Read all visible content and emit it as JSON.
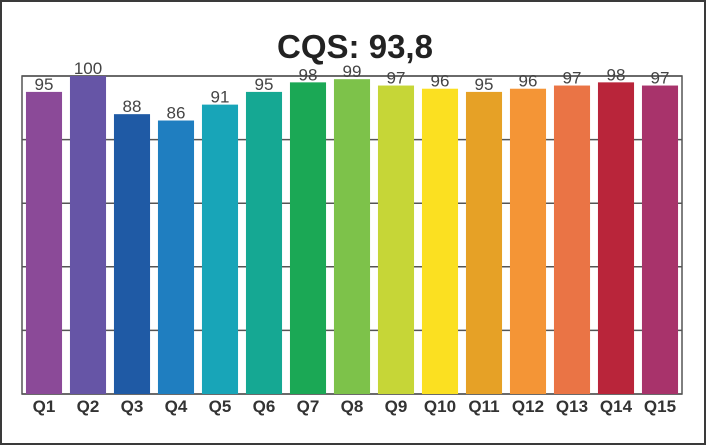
{
  "chart_data": {
    "type": "bar",
    "title": "CQS: 93,8",
    "categories": [
      "Q1",
      "Q2",
      "Q3",
      "Q4",
      "Q5",
      "Q6",
      "Q7",
      "Q8",
      "Q9",
      "Q10",
      "Q11",
      "Q12",
      "Q13",
      "Q14",
      "Q15"
    ],
    "values": [
      95,
      100,
      88,
      86,
      91,
      95,
      98,
      99,
      97,
      96,
      95,
      96,
      97,
      98,
      97
    ],
    "ylim": [
      0,
      100
    ],
    "grid": true,
    "legend": false,
    "colors": [
      "#8b4a98",
      "#6655a6",
      "#1f5aa5",
      "#1f7ec0",
      "#18a5b8",
      "#15a893",
      "#1ba855",
      "#7dc24a",
      "#c6d637",
      "#fbe021",
      "#e6a126",
      "#f49536",
      "#ea7445",
      "#b9253a",
      "#a8336b"
    ]
  }
}
